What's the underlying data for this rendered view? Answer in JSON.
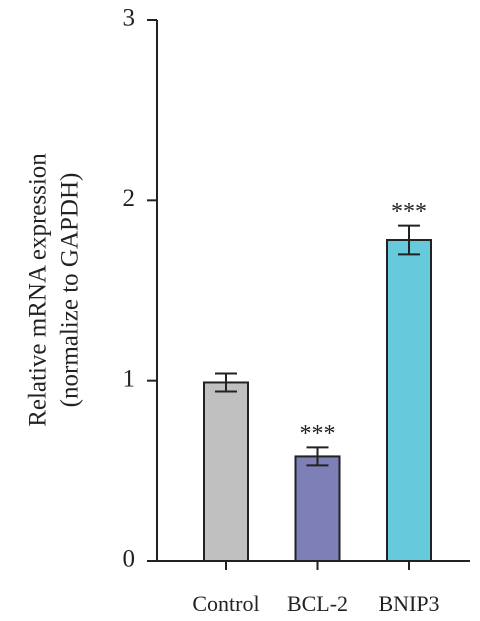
{
  "chart_data": {
    "type": "bar",
    "ylabel": [
      "Relative mRNA expression",
      "(normalize to GAPDH)"
    ],
    "categories": [
      "Control",
      "BCL-2",
      "BNIP3"
    ],
    "values": [
      0.99,
      0.58,
      1.78
    ],
    "errors": [
      0.05,
      0.05,
      0.08
    ],
    "colors": [
      "#c0c0c0",
      "#7f7fb8",
      "#66c9dc"
    ],
    "annotations": [
      {
        "category": "BCL-2",
        "text": "***"
      },
      {
        "category": "BNIP3",
        "text": "***"
      }
    ],
    "ylim": [
      0,
      3
    ],
    "yticks": [
      0,
      1,
      2,
      3
    ],
    "grid": false
  }
}
